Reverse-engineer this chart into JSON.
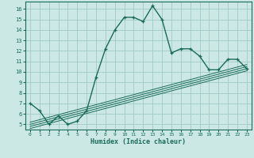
{
  "xlabel": "Humidex (Indice chaleur)",
  "bg_color": "#cce8e4",
  "grid_color": "#a0cac5",
  "line_color": "#1a6b5a",
  "xlim": [
    -0.5,
    23.5
  ],
  "ylim": [
    4.5,
    16.7
  ],
  "xticks": [
    0,
    1,
    2,
    3,
    4,
    5,
    6,
    7,
    8,
    9,
    10,
    11,
    12,
    13,
    14,
    15,
    16,
    17,
    18,
    19,
    20,
    21,
    22,
    23
  ],
  "yticks": [
    5,
    6,
    7,
    8,
    9,
    10,
    11,
    12,
    13,
    14,
    15,
    16
  ],
  "main_x": [
    0,
    1,
    2,
    3,
    4,
    5,
    6,
    7,
    8,
    9,
    10,
    11,
    12,
    13,
    14,
    15,
    16,
    17,
    18,
    19,
    20,
    21,
    22,
    23
  ],
  "main_y": [
    7.0,
    6.3,
    5.0,
    5.8,
    5.0,
    5.3,
    6.3,
    9.5,
    12.2,
    14.0,
    15.2,
    15.2,
    14.8,
    16.3,
    15.0,
    11.8,
    12.2,
    12.2,
    11.5,
    10.2,
    10.2,
    11.2,
    11.2,
    10.3
  ],
  "ref_lines": [
    {
      "x": [
        0,
        23
      ],
      "y": [
        4.6,
        10.1
      ]
    },
    {
      "x": [
        0,
        23
      ],
      "y": [
        4.8,
        10.3
      ]
    },
    {
      "x": [
        0,
        23
      ],
      "y": [
        5.0,
        10.5
      ]
    },
    {
      "x": [
        0,
        23
      ],
      "y": [
        5.2,
        10.7
      ]
    }
  ]
}
